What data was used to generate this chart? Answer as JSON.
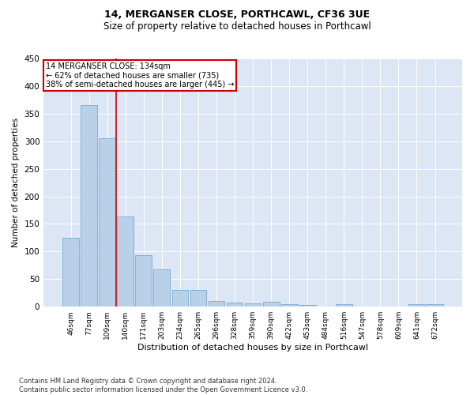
{
  "title": "14, MERGANSER CLOSE, PORTHCAWL, CF36 3UE",
  "subtitle": "Size of property relative to detached houses in Porthcawl",
  "xlabel": "Distribution of detached houses by size in Porthcawl",
  "ylabel": "Number of detached properties",
  "bar_color": "#b8d0e8",
  "bar_edge_color": "#7aaacf",
  "background_color": "#dce6f5",
  "categories": [
    "46sqm",
    "77sqm",
    "109sqm",
    "140sqm",
    "171sqm",
    "203sqm",
    "234sqm",
    "265sqm",
    "296sqm",
    "328sqm",
    "359sqm",
    "390sqm",
    "422sqm",
    "453sqm",
    "484sqm",
    "516sqm",
    "547sqm",
    "578sqm",
    "609sqm",
    "641sqm",
    "672sqm"
  ],
  "values": [
    125,
    365,
    305,
    163,
    93,
    68,
    30,
    30,
    11,
    7,
    6,
    9,
    4,
    3,
    0,
    4,
    0,
    0,
    0,
    5,
    4
  ],
  "ylim": [
    0,
    450
  ],
  "yticks": [
    0,
    50,
    100,
    150,
    200,
    250,
    300,
    350,
    400,
    450
  ],
  "marker_index": 3,
  "annotation_line1": "14 MERGANSER CLOSE: 134sqm",
  "annotation_line2": "← 62% of detached houses are smaller (735)",
  "annotation_line3": "38% of semi-detached houses are larger (445) →",
  "footer_line1": "Contains HM Land Registry data © Crown copyright and database right 2024.",
  "footer_line2": "Contains public sector information licensed under the Open Government Licence v3.0.",
  "red_line_color": "#cc0000",
  "annotation_box_edge": "#cc0000",
  "title_fontsize": 9,
  "subtitle_fontsize": 8.5,
  "ylabel_fontsize": 7.5,
  "xlabel_fontsize": 8,
  "ytick_fontsize": 7.5,
  "xtick_fontsize": 6.5,
  "annotation_fontsize": 7,
  "footer_fontsize": 6
}
